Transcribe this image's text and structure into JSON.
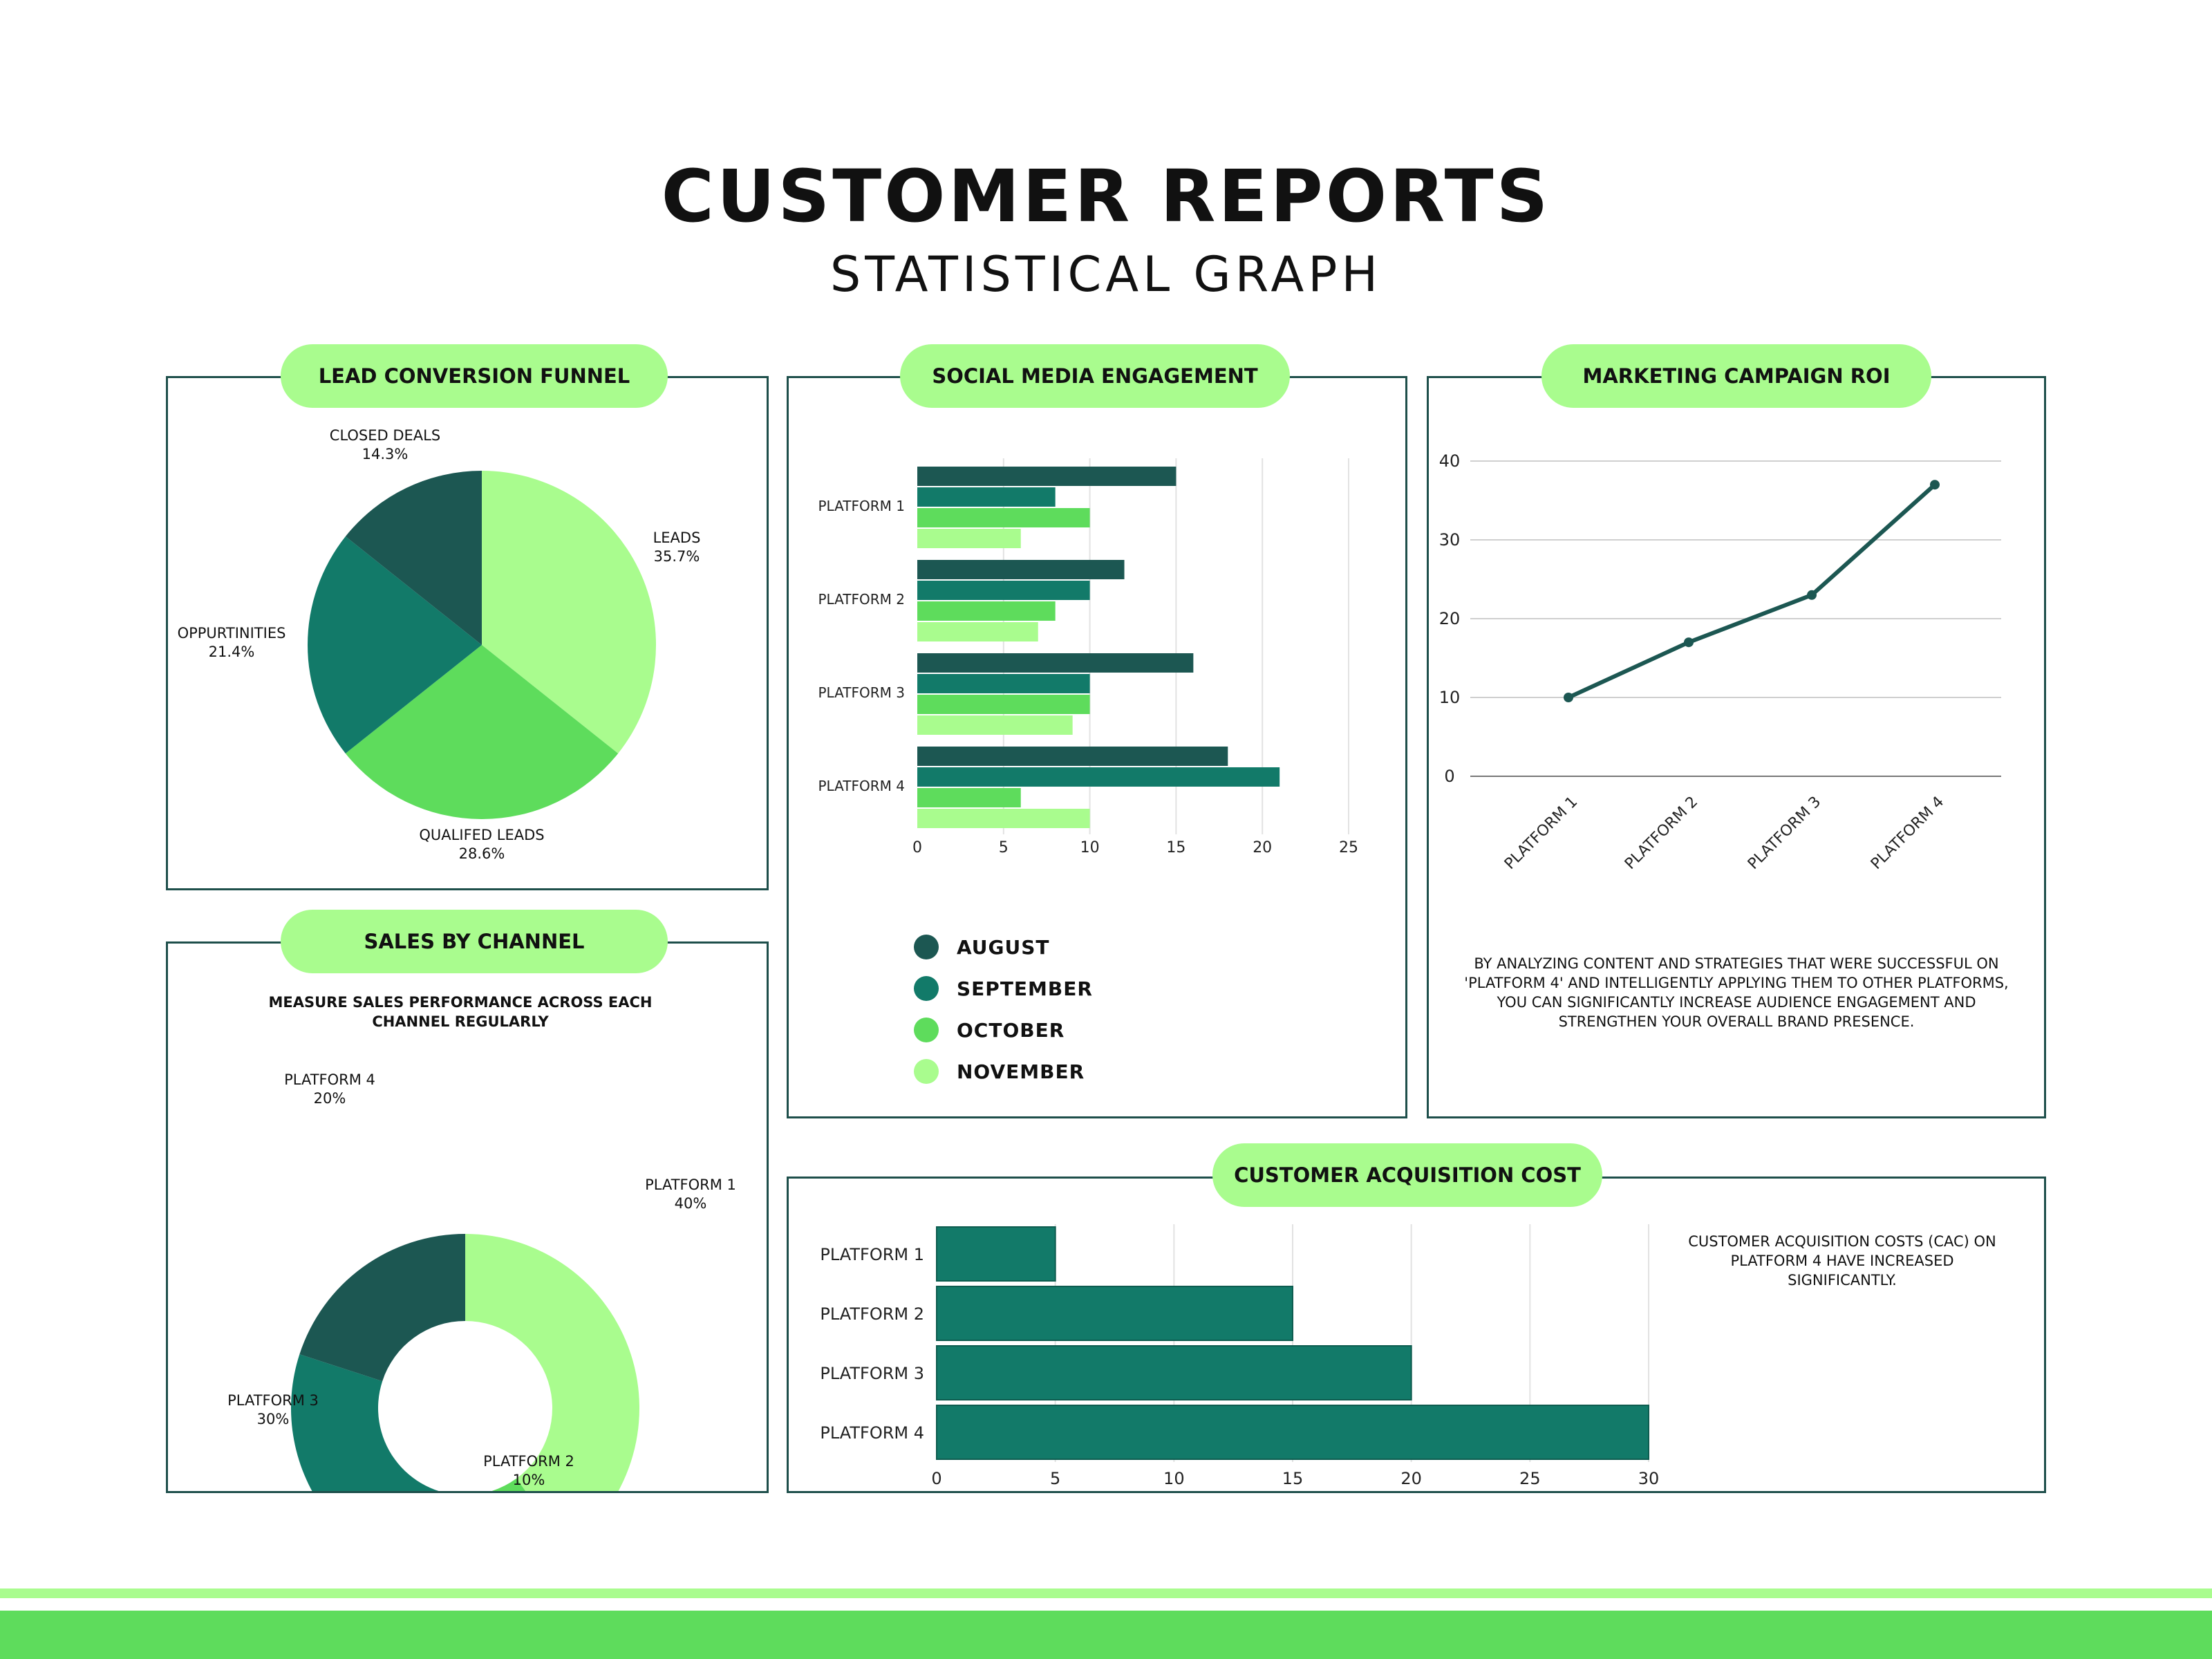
{
  "header": {
    "title": "CUSTOMER REPORTS",
    "subtitle": "STATISTICAL GRAPH"
  },
  "colors": {
    "dark": "#1c5752",
    "teal": "#127a69",
    "green": "#5edc5c",
    "light": "#a9fc8e",
    "border": "#1e4f4b"
  },
  "panels": {
    "funnel": {
      "title": "LEAD CONVERSION FUNNEL"
    },
    "social": {
      "title": "SOCIAL MEDIA ENGAGEMENT"
    },
    "roi": {
      "title": "MARKETING CAMPAIGN ROI",
      "note": "BY ANALYZING CONTENT AND STRATEGIES THAT WERE SUCCESSFUL ON 'PLATFORM 4' AND INTELLIGENTLY APPLYING THEM TO OTHER PLATFORMS, YOU CAN SIGNIFICANTLY INCREASE AUDIENCE ENGAGEMENT AND STRENGTHEN YOUR OVERALL BRAND PRESENCE."
    },
    "sales": {
      "title": "SALES BY CHANNEL",
      "caption": "MEASURE SALES PERFORMANCE ACROSS EACH CHANNEL REGULARLY"
    },
    "cac": {
      "title": "CUSTOMER ACQUISITION COST",
      "note": "CUSTOMER ACQUISITION COSTS (CAC) ON PLATFORM 4 HAVE INCREASED SIGNIFICANTLY."
    }
  },
  "chart_data": [
    {
      "id": "funnel",
      "type": "pie",
      "title": "LEAD CONVERSION FUNNEL",
      "slices": [
        {
          "label": "LEADS",
          "pct_label": "35.7%",
          "value": 35.7,
          "color": "#a9fc8e"
        },
        {
          "label": "QUALIFED LEADS",
          "pct_label": "28.6%",
          "value": 28.6,
          "color": "#5edc5c"
        },
        {
          "label": "OPPURTINITIES",
          "pct_label": "21.4%",
          "value": 21.4,
          "color": "#127a69"
        },
        {
          "label": "CLOSED DEALS",
          "pct_label": "14.3%",
          "value": 14.3,
          "color": "#1c5752"
        }
      ]
    },
    {
      "id": "social",
      "type": "bar",
      "orientation": "horizontal",
      "title": "SOCIAL MEDIA ENGAGEMENT",
      "categories": [
        "PLATFORM 1",
        "PLATFORM 2",
        "PLATFORM 3",
        "PLATFORM 4"
      ],
      "series": [
        {
          "name": "AUGUST",
          "color": "#1c5752",
          "values": [
            15,
            12,
            16,
            18
          ]
        },
        {
          "name": "SEPTEMBER",
          "color": "#127a69",
          "values": [
            8,
            10,
            10,
            21
          ]
        },
        {
          "name": "OCTOBER",
          "color": "#5edc5c",
          "values": [
            10,
            8,
            10,
            6
          ]
        },
        {
          "name": "NOVEMBER",
          "color": "#a9fc8e",
          "values": [
            6,
            7,
            9,
            10
          ]
        }
      ],
      "xlim": [
        0,
        25
      ],
      "xticks": [
        0,
        5,
        10,
        15,
        20,
        25
      ],
      "grid": true,
      "legend": "bottom-left"
    },
    {
      "id": "roi",
      "type": "line",
      "title": "MARKETING CAMPAIGN ROI",
      "categories": [
        "PLATFORM 1",
        "PLATFORM 2",
        "PLATFORM 3",
        "PLATFORM 4"
      ],
      "values": [
        10,
        17,
        23,
        37
      ],
      "ylim": [
        0,
        40
      ],
      "yticks": [
        0,
        10,
        20,
        30,
        40
      ],
      "color": "#1c5752",
      "grid": true
    },
    {
      "id": "sales",
      "type": "pie",
      "donut": true,
      "title": "SALES BY CHANNEL",
      "slices": [
        {
          "label": "PLATFORM 1",
          "pct_label": "40%",
          "value": 40,
          "color": "#a9fc8e"
        },
        {
          "label": "PLATFORM 2",
          "pct_label": "10%",
          "value": 10,
          "color": "#5edc5c"
        },
        {
          "label": "PLATFORM 3",
          "pct_label": "30%",
          "value": 30,
          "color": "#127a69"
        },
        {
          "label": "PLATFORM 4",
          "pct_label": "20%",
          "value": 20,
          "color": "#1c5752"
        }
      ]
    },
    {
      "id": "cac",
      "type": "bar",
      "orientation": "horizontal",
      "title": "CUSTOMER ACQUISITION COST",
      "categories": [
        "PLATFORM 1",
        "PLATFORM 2",
        "PLATFORM 3",
        "PLATFORM 4"
      ],
      "values": [
        5,
        15,
        20,
        30
      ],
      "xlim": [
        0,
        30
      ],
      "xticks": [
        0,
        5,
        10,
        15,
        20,
        25,
        30
      ],
      "color": "#127a69",
      "grid": true
    }
  ]
}
